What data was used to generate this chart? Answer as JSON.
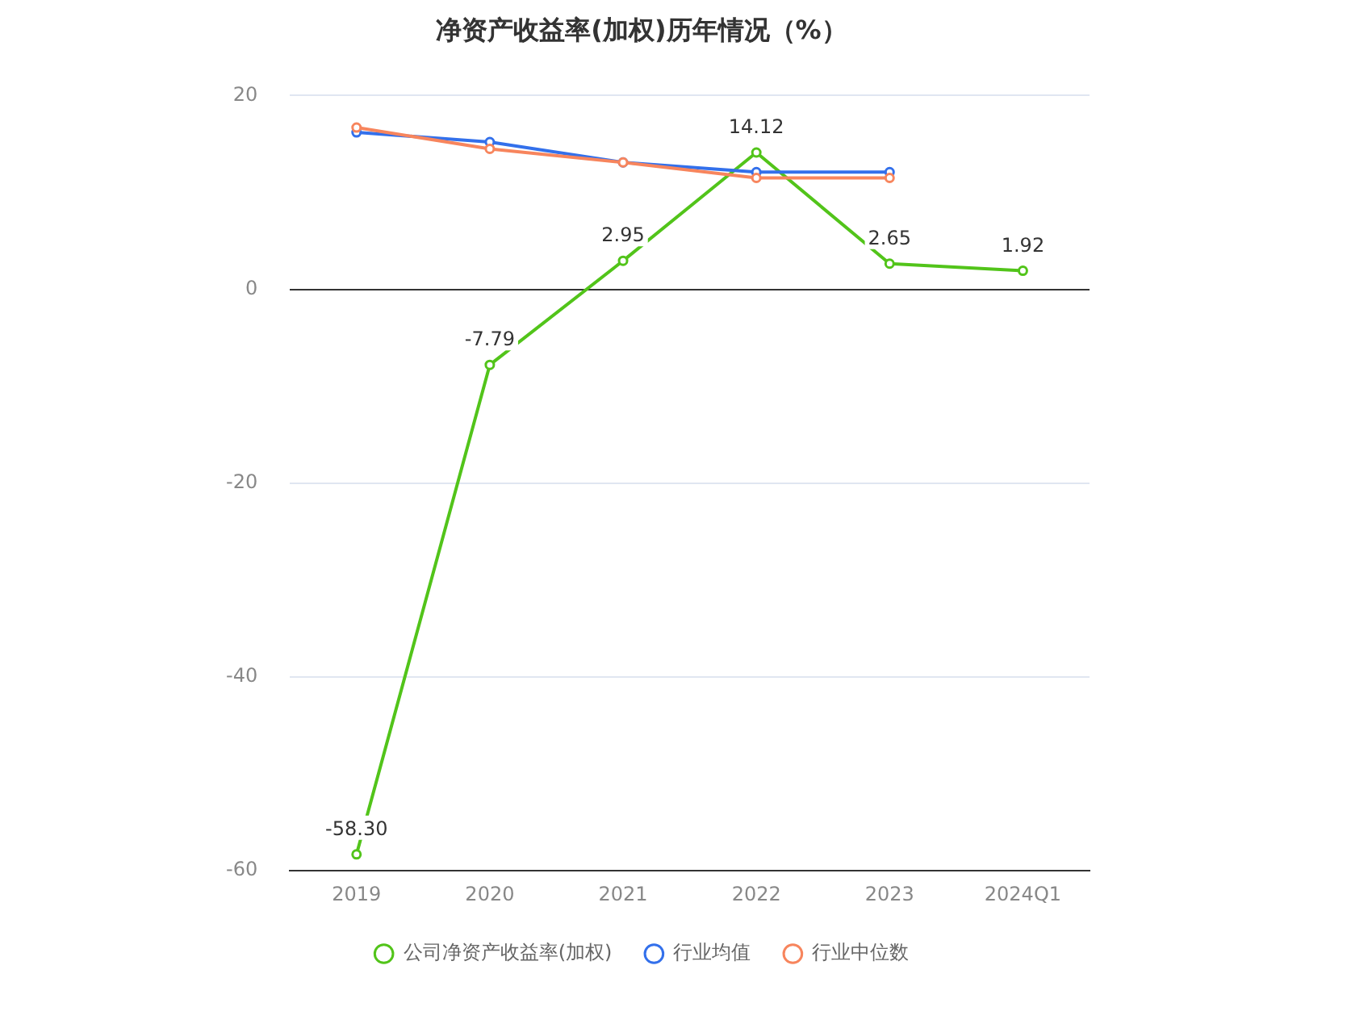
{
  "chart_data": {
    "type": "line",
    "title": "净资产收益率(加权)历年情况（%）",
    "categories": [
      "2019",
      "2020",
      "2021",
      "2022",
      "2023",
      "2024Q1"
    ],
    "series": [
      {
        "name": "公司净资产收益率(加权)",
        "color": "#52c41a",
        "values": [
          -58.3,
          -7.79,
          2.95,
          14.12,
          2.65,
          1.92
        ],
        "value_labels": [
          "-58.30",
          "-7.79",
          "2.95",
          "14.12",
          "2.65",
          "1.92"
        ]
      },
      {
        "name": "行业均值",
        "color": "#3370eb",
        "values": [
          16.2,
          15.2,
          13.1,
          12.1,
          12.1,
          null
        ]
      },
      {
        "name": "行业中位数",
        "color": "#f7855d",
        "values": [
          16.7,
          14.5,
          13.1,
          11.5,
          11.5,
          null
        ]
      }
    ],
    "ylim": [
      -60,
      20
    ],
    "yticks": [
      -60,
      -40,
      -20,
      0,
      20
    ],
    "grid": "y",
    "legend": "bottom",
    "marker": "circle",
    "line_style": "solid"
  }
}
